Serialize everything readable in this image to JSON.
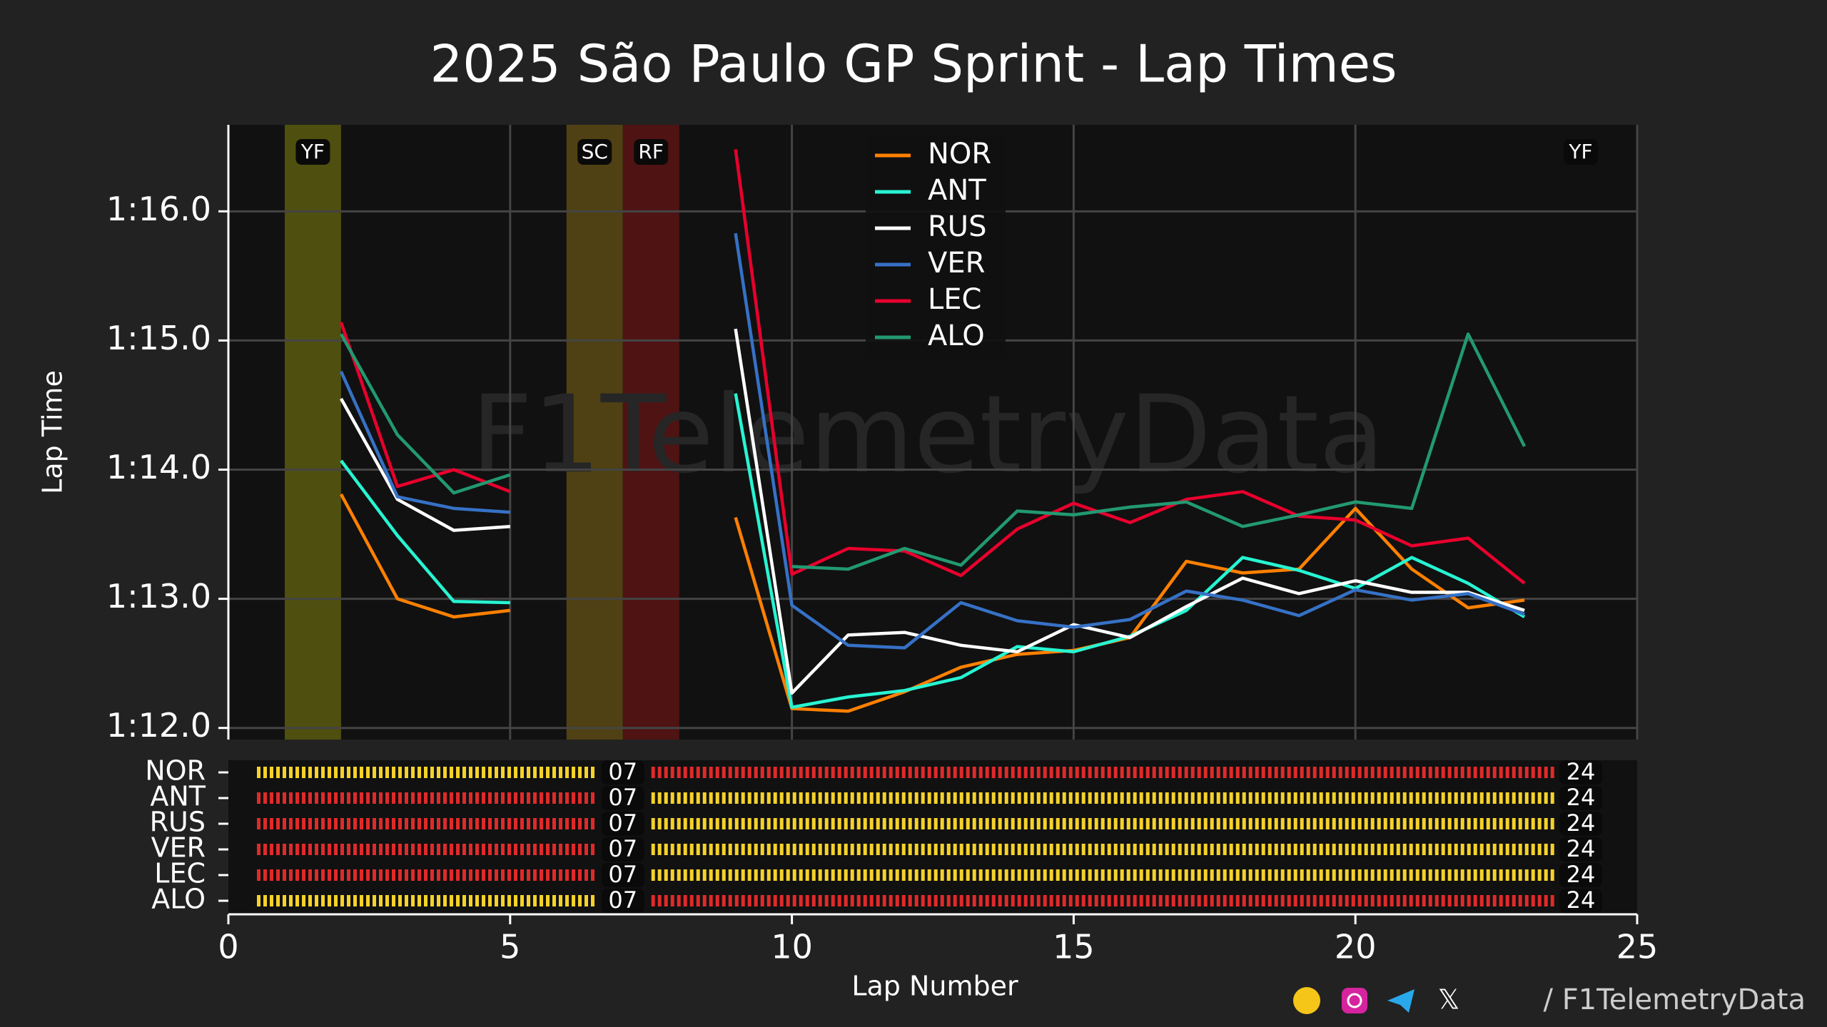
{
  "chart_data": {
    "type": "line",
    "title": "2025 São Paulo GP Sprint - Lap Times",
    "x_label": "Lap Number",
    "y_label": "Lap Time",
    "watermark": "F1TelemetryData",
    "xlim": [
      0,
      25
    ],
    "xticks": [
      0,
      5,
      10,
      15,
      20,
      25
    ],
    "ylim": [
      71.91,
      76.67
    ],
    "yticks": [
      {
        "value": 72,
        "label": "1:12.0"
      },
      {
        "value": 73,
        "label": "1:13.0"
      },
      {
        "value": 74,
        "label": "1:14.0"
      },
      {
        "value": 75,
        "label": "1:15.0"
      },
      {
        "value": 76,
        "label": "1:16.0"
      }
    ],
    "grid": true,
    "legend": "top-center",
    "x": [
      2,
      3,
      4,
      5,
      6,
      7,
      8,
      9,
      10,
      11,
      12,
      13,
      14,
      15,
      16,
      17,
      18,
      19,
      20,
      21,
      22,
      23
    ],
    "series": [
      {
        "name": "NOR",
        "color": "#ff8000",
        "values": [
          73.81,
          73.0,
          72.86,
          72.91,
          null,
          null,
          null,
          73.63,
          72.15,
          72.13,
          72.28,
          72.47,
          72.57,
          72.6,
          72.7,
          73.29,
          73.2,
          73.23,
          73.7,
          73.23,
          72.93,
          72.99
        ]
      },
      {
        "name": "ANT",
        "color": "#27f4d2",
        "values": [
          74.07,
          73.49,
          72.98,
          72.97,
          null,
          null,
          null,
          74.59,
          72.16,
          72.24,
          72.29,
          72.39,
          72.63,
          72.59,
          72.71,
          72.91,
          73.32,
          73.22,
          73.08,
          73.32,
          73.12,
          72.86
        ]
      },
      {
        "name": "RUS",
        "color": "#ffffff",
        "values": [
          74.55,
          73.77,
          73.53,
          73.56,
          null,
          null,
          null,
          75.09,
          72.27,
          72.72,
          72.74,
          72.64,
          72.59,
          72.8,
          72.7,
          72.94,
          73.16,
          73.04,
          73.14,
          73.05,
          73.05,
          72.91
        ]
      },
      {
        "name": "VER",
        "color": "#3671c6",
        "values": [
          74.76,
          73.79,
          73.7,
          73.67,
          null,
          null,
          null,
          75.83,
          72.95,
          72.64,
          72.62,
          72.97,
          72.83,
          72.78,
          72.84,
          73.06,
          72.99,
          72.87,
          73.07,
          72.99,
          73.04,
          72.88
        ]
      },
      {
        "name": "LEC",
        "color": "#e8002d",
        "values": [
          75.14,
          73.87,
          74.0,
          73.83,
          null,
          null,
          null,
          76.48,
          73.19,
          73.39,
          73.37,
          73.18,
          73.54,
          73.74,
          73.59,
          73.77,
          73.83,
          73.64,
          73.61,
          73.41,
          73.47,
          73.12
        ]
      },
      {
        "name": "ALO",
        "color": "#229971",
        "values": [
          75.05,
          74.27,
          73.82,
          73.96,
          null,
          null,
          null,
          null,
          73.25,
          73.23,
          73.39,
          73.26,
          73.68,
          73.65,
          73.71,
          73.75,
          73.56,
          73.65,
          73.75,
          73.7,
          75.05,
          74.18
        ]
      }
    ],
    "flags": [
      {
        "label": "YF",
        "start": 1,
        "end": 2,
        "color": "#5a5a10"
      },
      {
        "label": "SC",
        "start": 6,
        "end": 7,
        "color": "#5a4a14"
      },
      {
        "label": "RF",
        "start": 7,
        "end": 8,
        "color": "#5a1414"
      },
      {
        "label": "YF",
        "start": 24,
        "end": 24,
        "color": "#5a5a10"
      }
    ],
    "tyres": [
      {
        "driver": "NOR",
        "stints": [
          {
            "color": "#f5d22a",
            "end": {
              "value": 7,
              "label": "07"
            }
          },
          {
            "color": "#e02a2a",
            "end": {
              "value": 24,
              "label": "24"
            }
          }
        ]
      },
      {
        "driver": "ANT",
        "stints": [
          {
            "color": "#e02a2a",
            "end": {
              "value": 7,
              "label": "07"
            }
          },
          {
            "color": "#f5d22a",
            "end": {
              "value": 24,
              "label": "24"
            }
          }
        ]
      },
      {
        "driver": "RUS",
        "stints": [
          {
            "color": "#e02a2a",
            "end": {
              "value": 7,
              "label": "07"
            }
          },
          {
            "color": "#f5d22a",
            "end": {
              "value": 24,
              "label": "24"
            }
          }
        ]
      },
      {
        "driver": "VER",
        "stints": [
          {
            "color": "#e02a2a",
            "end": {
              "value": 7,
              "label": "07"
            }
          },
          {
            "color": "#f5d22a",
            "end": {
              "value": 24,
              "label": "24"
            }
          }
        ]
      },
      {
        "driver": "LEC",
        "stints": [
          {
            "color": "#e02a2a",
            "end": {
              "value": 7,
              "label": "07"
            }
          },
          {
            "color": "#f5d22a",
            "end": {
              "value": 24,
              "label": "24"
            }
          }
        ]
      },
      {
        "driver": "ALO",
        "stints": [
          {
            "color": "#f5d22a",
            "end": {
              "value": 7,
              "label": "07"
            }
          },
          {
            "color": "#e02a2a",
            "end": {
              "value": 24,
              "label": "24"
            }
          }
        ]
      }
    ],
    "footer": "/ F1TelemetryData"
  }
}
